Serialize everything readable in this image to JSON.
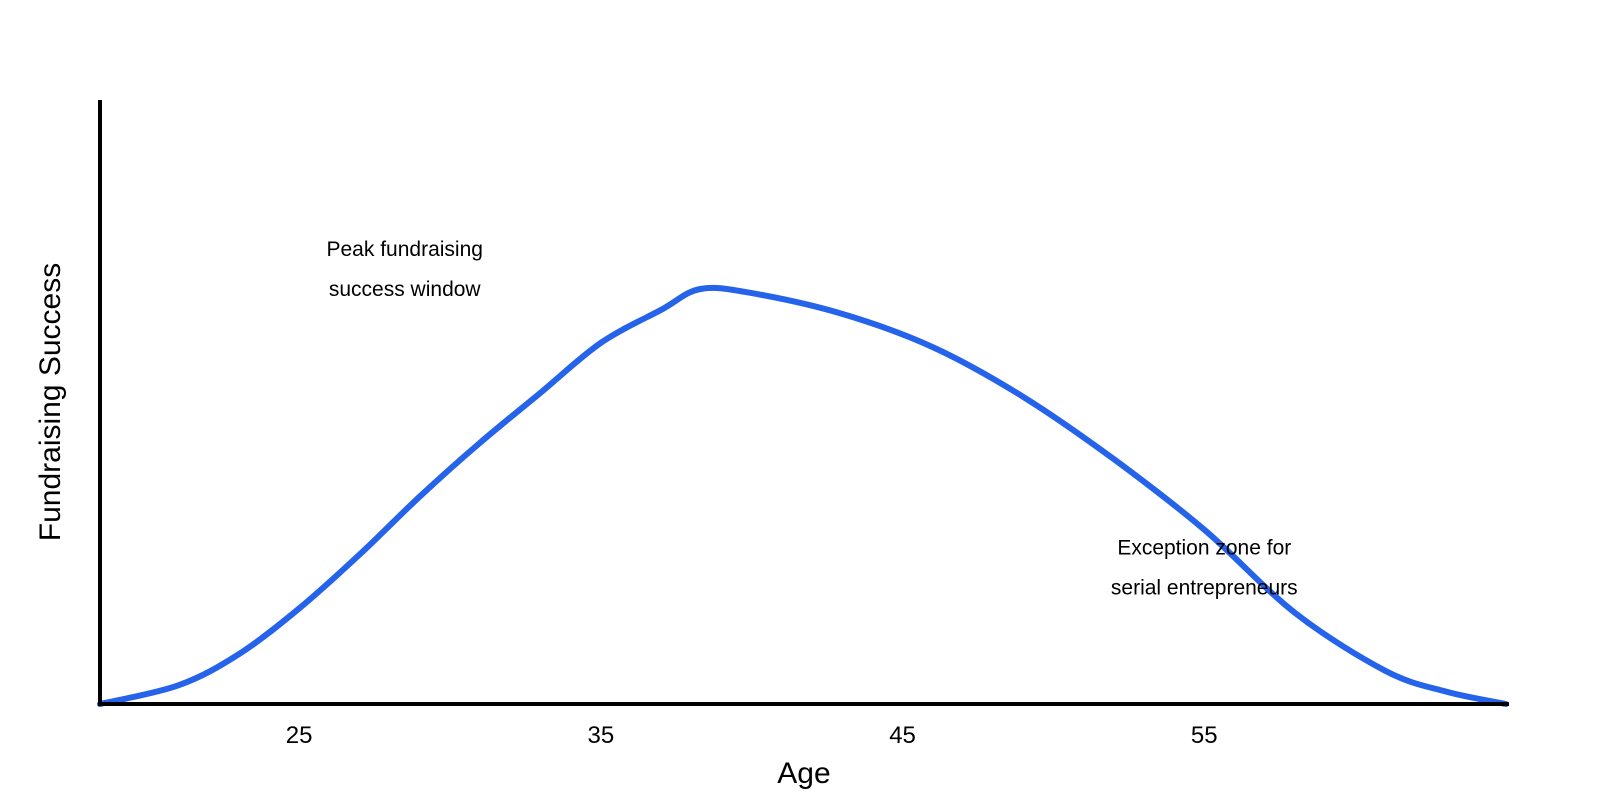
{
  "chart_data": {
    "type": "line",
    "title": "",
    "xlabel": "Age",
    "ylabel": "Fundraising Success",
    "xlim": [
      18.4,
      65
    ],
    "ylim": [
      0,
      100
    ],
    "x_ticks": [
      25,
      35,
      45,
      55
    ],
    "y_ticks": [],
    "grid": false,
    "legend": "none",
    "series": [
      {
        "color": "#2563EB",
        "x": [
          18.4,
          21,
          23,
          25,
          27,
          29,
          31,
          33,
          35,
          37,
          38.3,
          40,
          43,
          46,
          49,
          52,
          55,
          58,
          61,
          63,
          65
        ],
        "y": [
          0,
          4.5,
          12,
          23,
          36,
          50,
          63,
          75,
          87,
          95,
          100,
          99,
          94,
          86,
          74,
          59,
          42,
          22,
          8,
          3,
          0
        ]
      }
    ],
    "annotations": [
      {
        "lines": [
          "Peak fundraising",
          "success window"
        ],
        "x": 28.5,
        "y": 108
      },
      {
        "lines": [
          "Exception zone for",
          "serial entrepreneurs"
        ],
        "x": 55,
        "y": 36
      }
    ]
  }
}
